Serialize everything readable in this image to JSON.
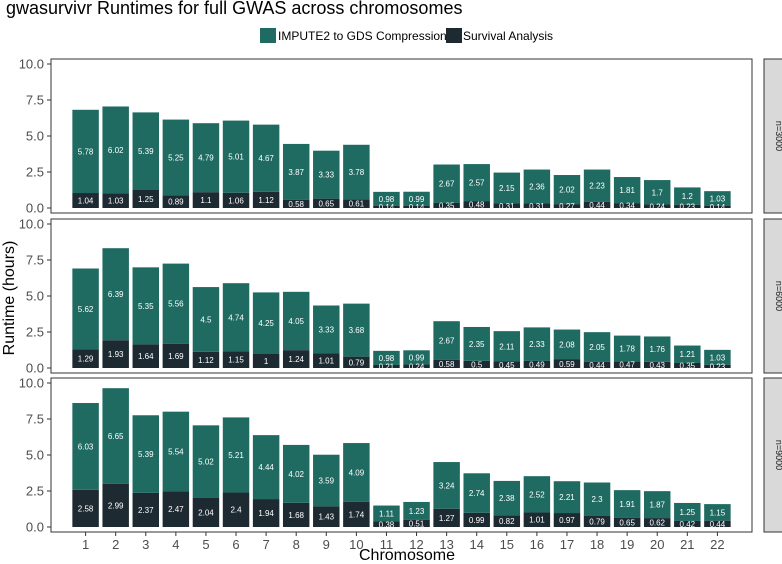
{
  "chart_data": {
    "type": "bar",
    "stacked": true,
    "title": "gwasurvivr Runtimes for full GWAS across chromosomes",
    "xlabel": "Chromosome",
    "ylabel": "Runtime (hours)",
    "ylim": [
      0,
      10
    ],
    "yticks": [
      "0.0",
      "2.5",
      "5.0",
      "7.5",
      "10.0"
    ],
    "grid": false,
    "legend_position": "top",
    "categories": [
      "1",
      "2",
      "3",
      "4",
      "5",
      "6",
      "7",
      "8",
      "9",
      "10",
      "11",
      "12",
      "13",
      "14",
      "15",
      "16",
      "17",
      "18",
      "19",
      "20",
      "21",
      "22"
    ],
    "series_colors": {
      "IMPUTE2 to GDS Compression": "#1f6b62",
      "Survival Analysis": "#1e2a32"
    },
    "legend": [
      "IMPUTE2 to GDS Compression",
      "Survival Analysis"
    ],
    "panels": [
      {
        "label": "n=3000",
        "series": [
          {
            "name": "IMPUTE2 to GDS Compression",
            "values": [
              5.78,
              6.02,
              5.39,
              5.25,
              4.79,
              5.01,
              4.67,
              3.87,
              3.33,
              3.78,
              0.98,
              0.99,
              2.67,
              2.57,
              2.15,
              2.36,
              2.02,
              2.23,
              1.81,
              1.7,
              1.2,
              1.03
            ]
          },
          {
            "name": "Survival Analysis",
            "values": [
              1.04,
              1.03,
              1.25,
              0.89,
              1.1,
              1.06,
              1.12,
              0.58,
              0.65,
              0.61,
              0.14,
              0.14,
              0.35,
              0.48,
              0.31,
              0.31,
              0.27,
              0.44,
              0.34,
              0.24,
              0.23,
              0.14
            ]
          }
        ]
      },
      {
        "label": "n=6000",
        "series": [
          {
            "name": "IMPUTE2 to GDS Compression",
            "values": [
              5.62,
              6.39,
              5.35,
              5.56,
              4.5,
              4.74,
              4.25,
              4.05,
              3.33,
              3.68,
              0.98,
              0.99,
              2.67,
              2.35,
              2.11,
              2.33,
              2.08,
              2.05,
              1.78,
              1.76,
              1.21,
              1.03
            ]
          },
          {
            "name": "Survival Analysis",
            "values": [
              1.29,
              1.93,
              1.64,
              1.69,
              1.12,
              1.15,
              1,
              1.24,
              1.01,
              0.79,
              0.21,
              0.24,
              0.58,
              0.5,
              0.45,
              0.49,
              0.59,
              0.44,
              0.47,
              0.43,
              0.35,
              0.23
            ]
          }
        ]
      },
      {
        "label": "n=9000",
        "series": [
          {
            "name": "IMPUTE2 to GDS Compression",
            "values": [
              6.03,
              6.65,
              5.39,
              5.54,
              5.02,
              5.21,
              4.44,
              4.02,
              3.59,
              4.09,
              1.11,
              1.23,
              3.24,
              2.74,
              2.38,
              2.52,
              2.21,
              2.3,
              1.91,
              1.87,
              1.25,
              1.15
            ]
          },
          {
            "name": "Survival Analysis",
            "values": [
              2.58,
              2.99,
              2.37,
              2.47,
              2.04,
              2.4,
              1.94,
              1.68,
              1.43,
              1.74,
              0.38,
              0.51,
              1.27,
              0.99,
              0.82,
              1.01,
              0.97,
              0.79,
              0.65,
              0.62,
              0.42,
              0.44
            ]
          }
        ]
      }
    ]
  }
}
